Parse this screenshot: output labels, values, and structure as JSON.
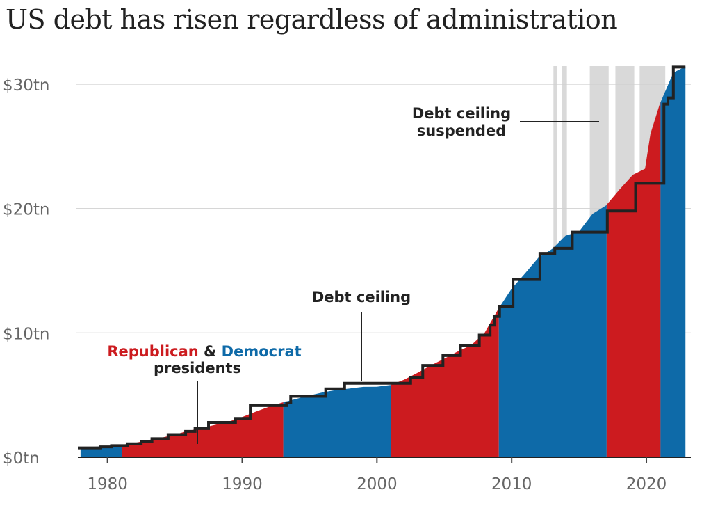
{
  "title": "US debt has risen regardless of administration",
  "colors": {
    "republican": "#cc1b1f",
    "democrat": "#0e6aa8",
    "ceiling": "#222222",
    "suspended": "#d9d9d9",
    "grid": "#d0d0d0"
  },
  "annotations": {
    "republican_label": "Republican",
    "and_label": " & ",
    "democrat_label": "Democrat",
    "presidents_label": "presidents",
    "debt_ceiling_label": "Debt ceiling",
    "suspended_line1": "Debt ceiling",
    "suspended_line2": "suspended"
  },
  "chart_data": {
    "type": "area",
    "title": "US debt has risen regardless of administration",
    "xlim": [
      1977.8,
      2023.3
    ],
    "ylim": [
      0,
      30
    ],
    "x_ticks": [
      1980,
      1990,
      2000,
      2010,
      2020
    ],
    "y_ticks": [
      {
        "value": 0,
        "label": "$0tn"
      },
      {
        "value": 10,
        "label": "$10tn"
      },
      {
        "value": 20,
        "label": "$20tn"
      },
      {
        "value": 30,
        "label": "$30tn"
      }
    ],
    "grid": true,
    "series": [
      {
        "name": "Debt",
        "points": [
          [
            1978,
            0.78
          ],
          [
            1979,
            0.83
          ],
          [
            1980,
            0.9
          ],
          [
            1981,
            0.99
          ],
          [
            1982,
            1.14
          ],
          [
            1983,
            1.37
          ],
          [
            1984,
            1.57
          ],
          [
            1985,
            1.82
          ],
          [
            1986,
            2.12
          ],
          [
            1987,
            2.35
          ],
          [
            1988,
            2.6
          ],
          [
            1989,
            2.86
          ],
          [
            1990,
            3.23
          ],
          [
            1991,
            3.66
          ],
          [
            1992,
            4.06
          ],
          [
            1993,
            4.41
          ],
          [
            1994,
            4.69
          ],
          [
            1995,
            4.97
          ],
          [
            1996,
            5.22
          ],
          [
            1997,
            5.41
          ],
          [
            1998,
            5.53
          ],
          [
            1999,
            5.66
          ],
          [
            2000,
            5.67
          ],
          [
            2001,
            5.81
          ],
          [
            2002,
            6.23
          ],
          [
            2003,
            6.78
          ],
          [
            2004,
            7.38
          ],
          [
            2005,
            7.93
          ],
          [
            2006,
            8.51
          ],
          [
            2007,
            9.01
          ],
          [
            2008,
            10.02
          ],
          [
            2009,
            11.91
          ],
          [
            2010,
            13.56
          ],
          [
            2011,
            14.79
          ],
          [
            2012,
            16.07
          ],
          [
            2013,
            16.74
          ],
          [
            2014,
            17.82
          ],
          [
            2015,
            18.15
          ],
          [
            2016,
            19.57
          ],
          [
            2017,
            20.24
          ],
          [
            2018,
            21.52
          ],
          [
            2019,
            22.72
          ],
          [
            2019.9,
            23.2
          ],
          [
            2020.3,
            26.0
          ],
          [
            2021,
            28.43
          ],
          [
            2022,
            30.93
          ],
          [
            2022.9,
            31.42
          ]
        ]
      },
      {
        "name": "Debt ceiling",
        "points": [
          [
            1978,
            0.75
          ],
          [
            1979.5,
            0.83
          ],
          [
            1980.3,
            0.93
          ],
          [
            1981.5,
            1.08
          ],
          [
            1982.5,
            1.29
          ],
          [
            1983.3,
            1.49
          ],
          [
            1984.5,
            1.82
          ],
          [
            1985.8,
            2.08
          ],
          [
            1986.5,
            2.3
          ],
          [
            1987.5,
            2.8
          ],
          [
            1989.5,
            3.12
          ],
          [
            1990.6,
            4.15
          ],
          [
            1993.3,
            4.37
          ],
          [
            1993.6,
            4.9
          ],
          [
            1996.2,
            5.5
          ],
          [
            1997.6,
            5.95
          ],
          [
            2002.5,
            6.4
          ],
          [
            2003.4,
            7.38
          ],
          [
            2004.9,
            8.18
          ],
          [
            2006.2,
            8.97
          ],
          [
            2007.6,
            9.82
          ],
          [
            2008.4,
            10.62
          ],
          [
            2008.7,
            11.32
          ],
          [
            2009.1,
            12.1
          ],
          [
            2010.1,
            14.29
          ],
          [
            2012.1,
            16.39
          ],
          [
            2013.2,
            16.8
          ],
          [
            2014.5,
            18.1
          ],
          [
            2017.1,
            19.8
          ],
          [
            2019.2,
            22.03
          ],
          [
            2021.3,
            28.4
          ],
          [
            2021.6,
            28.9
          ],
          [
            2022.0,
            31.38
          ],
          [
            2022.9,
            31.38
          ]
        ]
      }
    ],
    "administrations": [
      {
        "party": "Democrat",
        "start": 1977.8,
        "end": 1981.05
      },
      {
        "party": "Republican",
        "start": 1981.05,
        "end": 1993.05
      },
      {
        "party": "Democrat",
        "start": 1993.05,
        "end": 2001.05
      },
      {
        "party": "Republican",
        "start": 2001.05,
        "end": 2009.05
      },
      {
        "party": "Democrat",
        "start": 2009.05,
        "end": 2017.05
      },
      {
        "party": "Republican",
        "start": 2017.05,
        "end": 2021.05
      },
      {
        "party": "Democrat",
        "start": 2021.05,
        "end": 2022.9
      }
    ],
    "suspension_periods": [
      [
        2013.1,
        2013.35
      ],
      [
        2013.75,
        2014.1
      ],
      [
        2015.8,
        2017.2
      ],
      [
        2017.7,
        2019.1
      ],
      [
        2019.5,
        2021.4
      ]
    ]
  }
}
